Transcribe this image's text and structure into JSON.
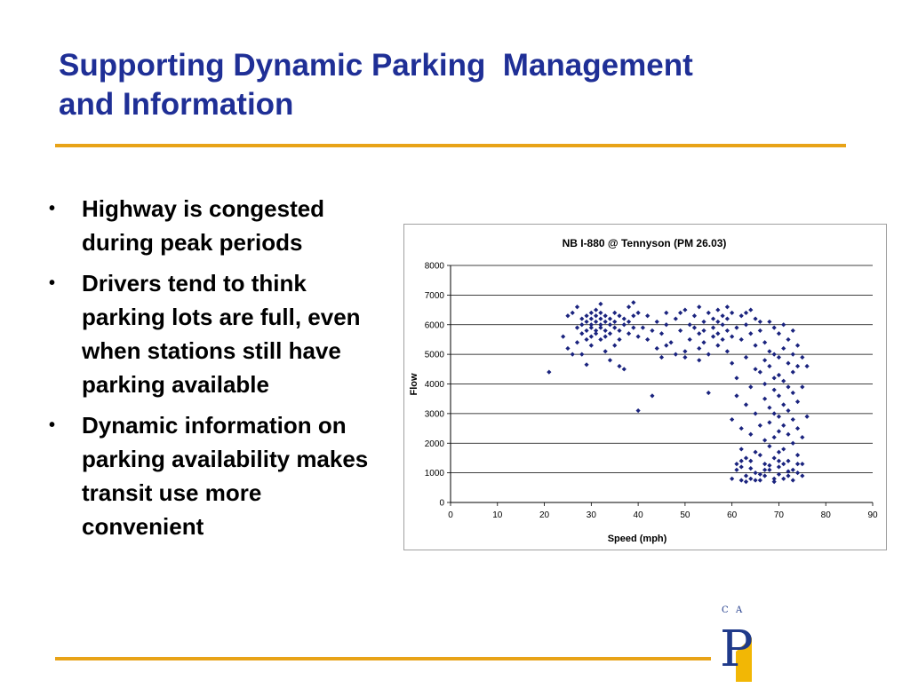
{
  "slide": {
    "title_lines": [
      "Supporting Dynamic Parking  Management",
      "and Information"
    ],
    "bullets": [
      "Highway is congested during peak periods",
      "Drivers tend to think parking lots are full, even when stations still have parking available",
      "Dynamic information on parking availability makes transit use more convenient"
    ],
    "bullet_symbol": "•"
  },
  "colors": {
    "title": "#1f2f96",
    "accent_rule": "#e8a317",
    "marker": "#1a237e",
    "logo_blue": "#1f3a8a",
    "logo_gold": "#f2b705"
  },
  "logo": {
    "letters": [
      "C",
      "A"
    ],
    "glyph": "P"
  },
  "chart_data": {
    "type": "scatter",
    "title": "NB I-880 @ Tennyson (PM 26.03)",
    "xlabel": "Speed (mph)",
    "ylabel": "Flow",
    "xlim": [
      0,
      90
    ],
    "ylim": [
      0,
      8000
    ],
    "xticks": [
      0,
      10,
      20,
      30,
      40,
      50,
      60,
      70,
      80,
      90
    ],
    "yticks": [
      0,
      1000,
      2000,
      3000,
      4000,
      5000,
      6000,
      7000,
      8000
    ],
    "grid": "horizontal",
    "legend": "none",
    "marker": "diamond",
    "series": [
      {
        "points": [
          [
            21,
            4400
          ],
          [
            24,
            5600
          ],
          [
            25,
            6300
          ],
          [
            25,
            5200
          ],
          [
            26,
            6400
          ],
          [
            26,
            5000
          ],
          [
            27,
            5900
          ],
          [
            27,
            5400
          ],
          [
            28,
            6200
          ],
          [
            28,
            5700
          ],
          [
            28,
            6000
          ],
          [
            29,
            6300
          ],
          [
            29,
            5800
          ],
          [
            29,
            5500
          ],
          [
            29,
            6100
          ],
          [
            30,
            5900
          ],
          [
            30,
            6400
          ],
          [
            30,
            6200
          ],
          [
            30,
            5600
          ],
          [
            30,
            6000
          ],
          [
            31,
            6500
          ],
          [
            31,
            5800
          ],
          [
            31,
            6300
          ],
          [
            31,
            6100
          ],
          [
            31,
            5700
          ],
          [
            32,
            6000
          ],
          [
            32,
            6400
          ],
          [
            32,
            5500
          ],
          [
            32,
            6200
          ],
          [
            32,
            5900
          ],
          [
            33,
            6100
          ],
          [
            33,
            5800
          ],
          [
            33,
            6300
          ],
          [
            33,
            5600
          ],
          [
            34,
            6000
          ],
          [
            34,
            6200
          ],
          [
            34,
            5700
          ],
          [
            35,
            6400
          ],
          [
            35,
            5900
          ],
          [
            35,
            6100
          ],
          [
            36,
            5800
          ],
          [
            36,
            6300
          ],
          [
            36,
            5500
          ],
          [
            37,
            6000
          ],
          [
            37,
            6200
          ],
          [
            38,
            6600
          ],
          [
            38,
            6100
          ],
          [
            38,
            5700
          ],
          [
            39,
            6300
          ],
          [
            39,
            5900
          ],
          [
            40,
            6400
          ],
          [
            40,
            5600
          ],
          [
            28,
            5000
          ],
          [
            30,
            5300
          ],
          [
            33,
            5100
          ],
          [
            34,
            4800
          ],
          [
            36,
            4600
          ],
          [
            35,
            5300
          ],
          [
            37,
            4500
          ],
          [
            29,
            4650
          ],
          [
            27,
            6600
          ],
          [
            32,
            6700
          ],
          [
            39,
            6750
          ],
          [
            40,
            3100
          ],
          [
            43,
            3600
          ],
          [
            42,
            6300
          ],
          [
            43,
            5800
          ],
          [
            44,
            6100
          ],
          [
            44,
            5200
          ],
          [
            45,
            4900
          ],
          [
            45,
            5700
          ],
          [
            46,
            6400
          ],
          [
            46,
            6000
          ],
          [
            47,
            5400
          ],
          [
            48,
            5000
          ],
          [
            48,
            6200
          ],
          [
            49,
            5800
          ],
          [
            49,
            6400
          ],
          [
            50,
            6500
          ],
          [
            50,
            5100
          ],
          [
            51,
            6000
          ],
          [
            51,
            5500
          ],
          [
            52,
            5900
          ],
          [
            52,
            6300
          ],
          [
            53,
            5700
          ],
          [
            53,
            6600
          ],
          [
            53,
            5200
          ],
          [
            54,
            6100
          ],
          [
            54,
            5400
          ],
          [
            54,
            5800
          ],
          [
            55,
            6400
          ],
          [
            55,
            5000
          ],
          [
            55,
            3700
          ],
          [
            56,
            6200
          ],
          [
            56,
            5600
          ],
          [
            56,
            5900
          ],
          [
            57,
            5300
          ],
          [
            57,
            6500
          ],
          [
            57,
            5700
          ],
          [
            58,
            6000
          ],
          [
            58,
            5500
          ],
          [
            58,
            6300
          ],
          [
            59,
            5800
          ],
          [
            59,
            5100
          ],
          [
            59,
            6200
          ],
          [
            60,
            5600
          ],
          [
            60,
            6400
          ],
          [
            60,
            4700
          ],
          [
            60,
            2800
          ],
          [
            61,
            5900
          ],
          [
            61,
            4200
          ],
          [
            61,
            3600
          ],
          [
            61,
            1300
          ],
          [
            61,
            1100
          ],
          [
            62,
            5500
          ],
          [
            62,
            2500
          ],
          [
            62,
            1800
          ],
          [
            62,
            1200
          ],
          [
            63,
            6000
          ],
          [
            63,
            4900
          ],
          [
            63,
            3300
          ],
          [
            63,
            1500
          ],
          [
            63,
            900
          ],
          [
            64,
            5700
          ],
          [
            64,
            3900
          ],
          [
            64,
            2300
          ],
          [
            64,
            1400
          ],
          [
            64,
            800
          ],
          [
            65,
            6200
          ],
          [
            65,
            5300
          ],
          [
            65,
            4500
          ],
          [
            65,
            3000
          ],
          [
            65,
            1700
          ],
          [
            65,
            1000
          ],
          [
            65,
            750
          ],
          [
            66,
            5800
          ],
          [
            66,
            4400
          ],
          [
            66,
            2600
          ],
          [
            66,
            1600
          ],
          [
            66,
            950
          ],
          [
            67,
            5400
          ],
          [
            67,
            4800
          ],
          [
            67,
            4000
          ],
          [
            67,
            3500
          ],
          [
            67,
            2100
          ],
          [
            67,
            1300
          ],
          [
            67,
            900
          ],
          [
            68,
            6100
          ],
          [
            68,
            5100
          ],
          [
            68,
            4600
          ],
          [
            68,
            3200
          ],
          [
            68,
            2700
          ],
          [
            68,
            1900
          ],
          [
            68,
            1100
          ],
          [
            69,
            5900
          ],
          [
            69,
            5000
          ],
          [
            69,
            4200
          ],
          [
            69,
            3800
          ],
          [
            69,
            3000
          ],
          [
            69,
            2200
          ],
          [
            69,
            1500
          ],
          [
            69,
            800
          ],
          [
            70,
            5700
          ],
          [
            70,
            4900
          ],
          [
            70,
            4300
          ],
          [
            70,
            3600
          ],
          [
            70,
            2900
          ],
          [
            70,
            2400
          ],
          [
            70,
            1700
          ],
          [
            70,
            1200
          ],
          [
            70,
            950
          ],
          [
            71,
            6000
          ],
          [
            71,
            5200
          ],
          [
            71,
            4100
          ],
          [
            71,
            3300
          ],
          [
            71,
            2600
          ],
          [
            71,
            1800
          ],
          [
            71,
            1300
          ],
          [
            72,
            5500
          ],
          [
            72,
            4700
          ],
          [
            72,
            3900
          ],
          [
            72,
            3100
          ],
          [
            72,
            2300
          ],
          [
            72,
            1400
          ],
          [
            72,
            900
          ],
          [
            73,
            5800
          ],
          [
            73,
            5000
          ],
          [
            73,
            4400
          ],
          [
            73,
            3700
          ],
          [
            73,
            2800
          ],
          [
            73,
            2000
          ],
          [
            73,
            1100
          ],
          [
            74,
            5300
          ],
          [
            74,
            4600
          ],
          [
            74,
            3400
          ],
          [
            74,
            2500
          ],
          [
            74,
            1600
          ],
          [
            74,
            1000
          ],
          [
            75,
            4900
          ],
          [
            75,
            3900
          ],
          [
            75,
            2200
          ],
          [
            75,
            1300
          ],
          [
            76,
            4600
          ],
          [
            76,
            2900
          ],
          [
            62,
            6300
          ],
          [
            63,
            6400
          ],
          [
            66,
            6100
          ],
          [
            64,
            6500
          ],
          [
            59,
            6600
          ],
          [
            57,
            6100
          ],
          [
            46,
            5300
          ],
          [
            50,
            4900
          ],
          [
            53,
            4800
          ],
          [
            41,
            5900
          ],
          [
            42,
            5500
          ],
          [
            60,
            800
          ],
          [
            62,
            750
          ],
          [
            63,
            700
          ],
          [
            66,
            750
          ],
          [
            69,
            700
          ],
          [
            71,
            800
          ],
          [
            73,
            750
          ],
          [
            75,
            900
          ],
          [
            72,
            1050
          ],
          [
            67,
            1100
          ],
          [
            68,
            1250
          ],
          [
            70,
            1400
          ],
          [
            74,
            1300
          ],
          [
            64,
            1150
          ],
          [
            62,
            1400
          ]
        ]
      }
    ]
  }
}
